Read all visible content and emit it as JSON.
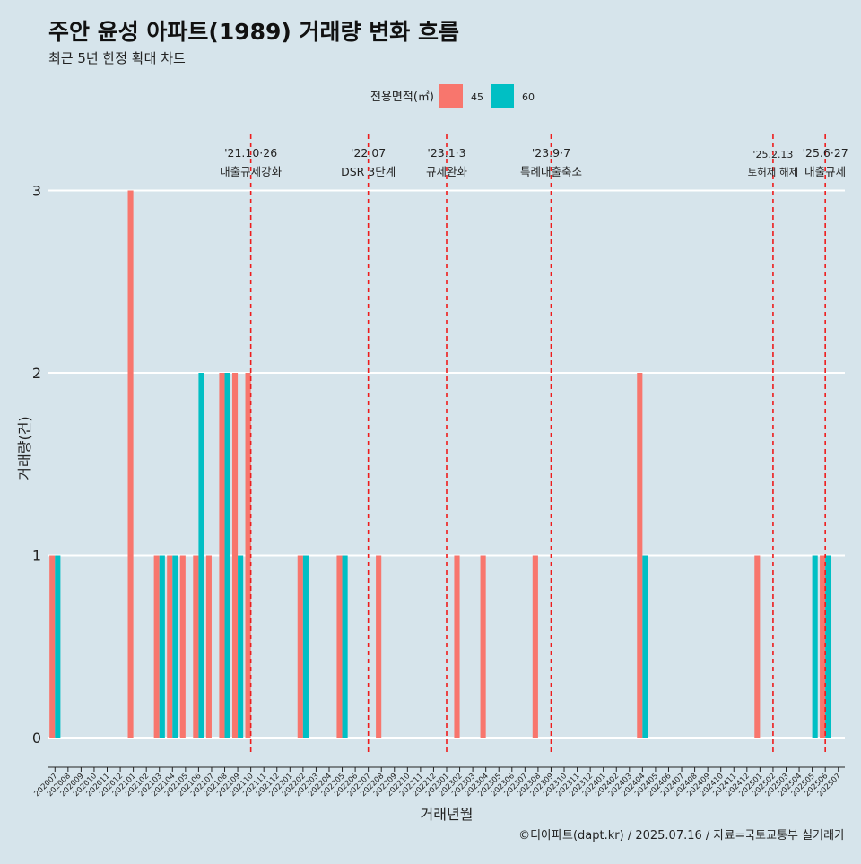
{
  "chart_data": {
    "type": "bar",
    "title": "주안 윤성 아파트(1989) 거래량 변화 흐름",
    "subtitle": "최근 5년 한정 확대 차트",
    "xlabel": "거래년월",
    "ylabel": "거래량(건)",
    "ylim": [
      0,
      3
    ],
    "yticks": [
      0,
      1,
      2,
      3
    ],
    "grid": true,
    "legend": {
      "title": "전용면적(㎡)",
      "placement": "top"
    },
    "categories": [
      "202007",
      "202008",
      "202009",
      "202010",
      "202011",
      "202012",
      "202101",
      "202102",
      "202103",
      "202104",
      "202105",
      "202106",
      "202107",
      "202108",
      "202109",
      "202110",
      "202111",
      "202112",
      "202201",
      "202202",
      "202203",
      "202204",
      "202205",
      "202206",
      "202207",
      "202208",
      "202209",
      "202210",
      "202211",
      "202212",
      "202301",
      "202302",
      "202303",
      "202304",
      "202305",
      "202306",
      "202307",
      "202308",
      "202309",
      "202310",
      "202311",
      "202312",
      "202401",
      "202402",
      "202403",
      "202404",
      "202405",
      "202406",
      "202407",
      "202408",
      "202409",
      "202410",
      "202411",
      "202412",
      "202501",
      "202502",
      "202503",
      "202504",
      "202505",
      "202506",
      "202507"
    ],
    "series": [
      {
        "name": "45",
        "color": "#f8766d",
        "values": [
          1,
          0,
          0,
          0,
          0,
          0,
          3,
          0,
          1,
          1,
          1,
          1,
          1,
          2,
          2,
          2,
          0,
          0,
          0,
          1,
          0,
          0,
          1,
          0,
          0,
          1,
          0,
          0,
          0,
          0,
          0,
          1,
          0,
          1,
          0,
          0,
          0,
          1,
          0,
          0,
          0,
          0,
          0,
          0,
          0,
          2,
          0,
          0,
          0,
          0,
          0,
          0,
          0,
          0,
          1,
          0,
          0,
          0,
          0,
          1,
          0
        ]
      },
      {
        "name": "60",
        "color": "#00bfc4",
        "values": [
          1,
          0,
          0,
          0,
          0,
          0,
          0,
          0,
          1,
          1,
          0,
          2,
          0,
          2,
          1,
          0,
          0,
          0,
          0,
          1,
          0,
          0,
          1,
          0,
          0,
          0,
          0,
          0,
          0,
          0,
          0,
          0,
          0,
          0,
          0,
          0,
          0,
          0,
          0,
          0,
          0,
          0,
          0,
          0,
          0,
          1,
          0,
          0,
          0,
          0,
          0,
          0,
          0,
          0,
          0,
          0,
          0,
          0,
          1,
          1,
          0
        ]
      }
    ],
    "annotations": [
      {
        "date": "'21.10·26",
        "label": "대출규제강화",
        "x": "202110"
      },
      {
        "date": "'22.07",
        "label": "DSR 3단계",
        "x": "202207"
      },
      {
        "date": "'23.1·3",
        "label": "규제완화",
        "x": "202301"
      },
      {
        "date": "'23.9·7",
        "label": "특례대출축소",
        "x": "202309"
      },
      {
        "date": "'25.2.13",
        "label": "토허제 해제",
        "x": "202502"
      },
      {
        "date": "'25.6·27",
        "label": "대출규제",
        "x": "202506"
      }
    ]
  },
  "caption": "©디아파트(dapt.kr) / 2025.07.16 / 자료=국토교통부 실거래가"
}
